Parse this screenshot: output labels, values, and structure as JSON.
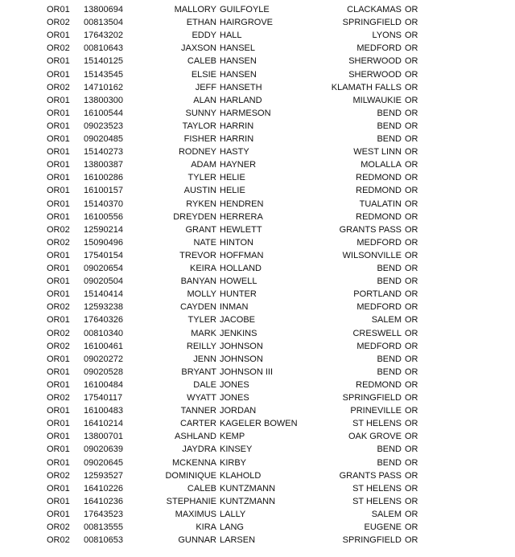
{
  "table": {
    "rows": [
      [
        "OR01",
        "13800694",
        "MALLORY",
        "GUILFOYLE",
        "CLACKAMAS",
        "OR"
      ],
      [
        "OR02",
        "00813504",
        "ETHAN",
        "HAIRGROVE",
        "SPRINGFIELD",
        "OR"
      ],
      [
        "OR01",
        "17643202",
        "EDDY",
        "HALL",
        "LYONS",
        "OR"
      ],
      [
        "OR02",
        "00810643",
        "JAXSON",
        "HANSEL",
        "MEDFORD",
        "OR"
      ],
      [
        "OR01",
        "15140125",
        "CALEB",
        "HANSEN",
        "SHERWOOD",
        "OR"
      ],
      [
        "OR01",
        "15143545",
        "ELSIE",
        "HANSEN",
        "SHERWOOD",
        "OR"
      ],
      [
        "OR02",
        "14710162",
        "JEFF",
        "HANSETH",
        "KLAMATH FALLS",
        "OR"
      ],
      [
        "OR01",
        "13800300",
        "ALAN",
        "HARLAND",
        "MILWAUKIE",
        "OR"
      ],
      [
        "OR01",
        "16100544",
        "SUNNY",
        "HARMESON",
        "BEND",
        "OR"
      ],
      [
        "OR01",
        "09023523",
        "TAYLOR",
        "HARRIN",
        "BEND",
        "OR"
      ],
      [
        "OR01",
        "09020485",
        "FISHER",
        "HARRIN",
        "BEND",
        "OR"
      ],
      [
        "OR01",
        "15140273",
        "RODNEY",
        "HASTY",
        "WEST LINN",
        "OR"
      ],
      [
        "OR01",
        "13800387",
        "ADAM",
        "HAYNER",
        "MOLALLA",
        "OR"
      ],
      [
        "OR01",
        "16100286",
        "TYLER",
        "HELIE",
        "REDMOND",
        "OR"
      ],
      [
        "OR01",
        "16100157",
        "AUSTIN",
        "HELIE",
        "REDMOND",
        "OR"
      ],
      [
        "OR01",
        "15140370",
        "RYKEN",
        "HENDREN",
        "TUALATIN",
        "OR"
      ],
      [
        "OR01",
        "16100556",
        "DREYDEN",
        "HERRERA",
        "REDMOND",
        "OR"
      ],
      [
        "OR02",
        "12590214",
        "GRANT",
        "HEWLETT",
        "GRANTS PASS",
        "OR"
      ],
      [
        "OR02",
        "15090496",
        "NATE",
        "HINTON",
        "MEDFORD",
        "OR"
      ],
      [
        "OR01",
        "17540154",
        "TREVOR",
        "HOFFMAN",
        "WILSONVILLE",
        "OR"
      ],
      [
        "OR01",
        "09020654",
        "KEIRA",
        "HOLLAND",
        "BEND",
        "OR"
      ],
      [
        "OR01",
        "09020504",
        "BANYAN",
        "HOWELL",
        "BEND",
        "OR"
      ],
      [
        "OR01",
        "15140414",
        "MOLLY",
        "HUNTER",
        "PORTLAND",
        "OR"
      ],
      [
        "OR02",
        "12593238",
        "CAYDEN",
        "INMAN",
        "MEDFORD",
        "OR"
      ],
      [
        "OR01",
        "17640326",
        "TYLER",
        "JACOBE",
        "SALEM",
        "OR"
      ],
      [
        "OR02",
        "00810340",
        "MARK",
        "JENKINS",
        "CRESWELL",
        "OR"
      ],
      [
        "OR02",
        "16100461",
        "REILLY",
        "JOHNSON",
        "MEDFORD",
        "OR"
      ],
      [
        "OR01",
        "09020272",
        "JENN",
        "JOHNSON",
        "BEND",
        "OR"
      ],
      [
        "OR01",
        "09020528",
        "BRYANT",
        "JOHNSON III",
        "BEND",
        "OR"
      ],
      [
        "OR01",
        "16100484",
        "DALE",
        "JONES",
        "REDMOND",
        "OR"
      ],
      [
        "OR02",
        "17540117",
        "WYATT",
        "JONES",
        "SPRINGFIELD",
        "OR"
      ],
      [
        "OR01",
        "16100483",
        "TANNER",
        "JORDAN",
        "PRINEVILLE",
        "OR"
      ],
      [
        "OR01",
        "16410214",
        "CARTER",
        "KAGELER BOWEN",
        "ST HELENS",
        "OR"
      ],
      [
        "OR01",
        "13800701",
        "ASHLAND",
        "KEMP",
        "OAK GROVE",
        "OR"
      ],
      [
        "OR01",
        "09020639",
        "JAYDRA",
        "KINSEY",
        "BEND",
        "OR"
      ],
      [
        "OR01",
        "09020645",
        "MCKENNA",
        "KIRBY",
        "BEND",
        "OR"
      ],
      [
        "OR02",
        "12593527",
        "DOMINIQUE",
        "KLAHOLD",
        "GRANTS PASS",
        "OR"
      ],
      [
        "OR01",
        "16410226",
        "CALEB",
        "KUNTZMANN",
        "ST HELENS",
        "OR"
      ],
      [
        "OR01",
        "16410236",
        "STEPHANIE",
        "KUNTZMANN",
        "ST HELENS",
        "OR"
      ],
      [
        "OR01",
        "17643523",
        "MAXIMUS",
        "LALLY",
        "SALEM",
        "OR"
      ],
      [
        "OR02",
        "00813555",
        "KIRA",
        "LANG",
        "EUGENE",
        "OR"
      ],
      [
        "OR02",
        "00810653",
        "GUNNAR",
        "LARSEN",
        "SPRINGFIELD",
        "OR"
      ]
    ]
  }
}
